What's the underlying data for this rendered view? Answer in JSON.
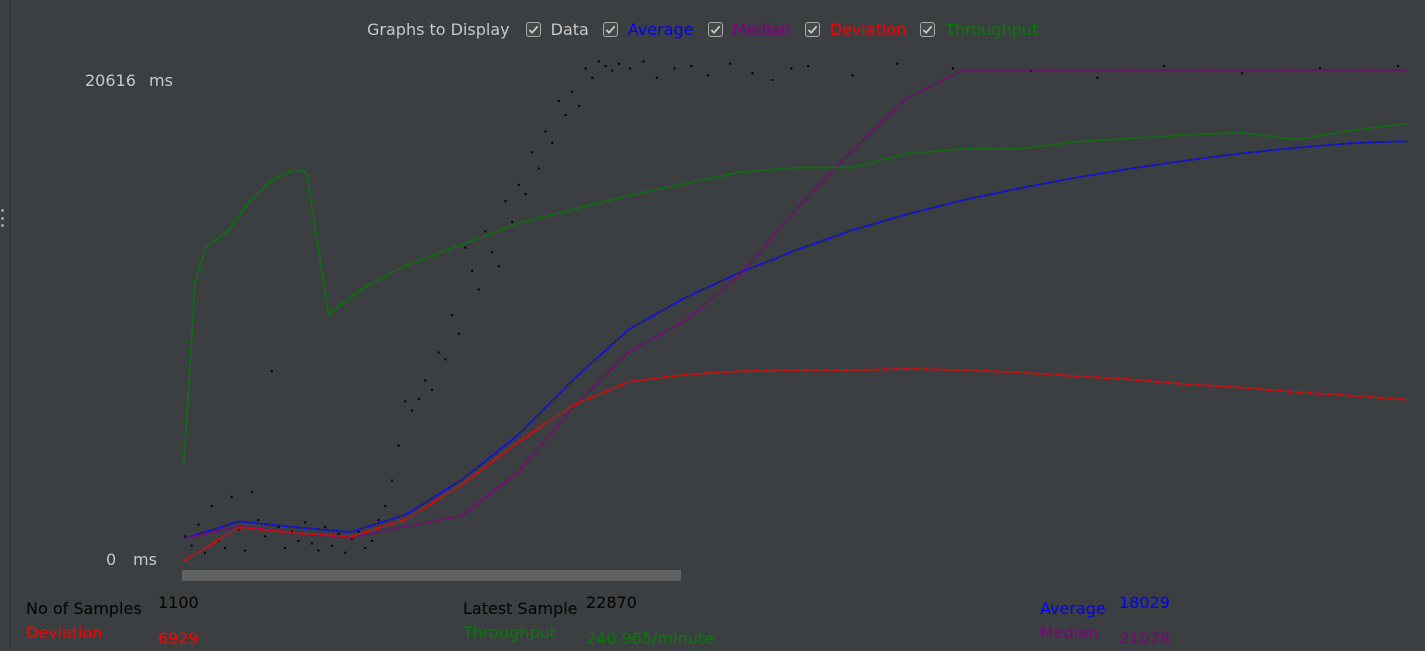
{
  "toolbar": {
    "label": "Graphs to Display",
    "checkboxes": [
      {
        "label": "Data",
        "checked": true,
        "color": "#000000"
      },
      {
        "label": "Average",
        "checked": true,
        "color": "#0000ff"
      },
      {
        "label": "Median",
        "checked": true,
        "color": "#800080"
      },
      {
        "label": "Deviation",
        "checked": true,
        "color": "#ff0000"
      },
      {
        "label": "Throughput",
        "checked": true,
        "color": "#008000"
      }
    ]
  },
  "colors": {
    "background": "#3c3f41",
    "text": "#c8c8c8",
    "data": "#000000",
    "average": "#0000ff",
    "median": "#800080",
    "deviation": "#ff0000",
    "throughput": "#008000"
  },
  "stats": {
    "no_of_samples_label": "No of Samples",
    "no_of_samples_value": "1100",
    "deviation_label": "Deviation",
    "deviation_value": "6929",
    "latest_sample_label": "Latest Sample",
    "latest_sample_value": "22870",
    "throughput_label": "Throughput",
    "throughput_value": "240.965/minute",
    "average_label": "Average",
    "average_value": "18029",
    "median_label": "Median",
    "median_value": "21078"
  },
  "chart_data": {
    "type": "line",
    "ytick_max": "20616",
    "ytick_min": "0",
    "yunit": "ms",
    "ylim": [
      0,
      20616
    ],
    "xlim": [
      0,
      1100
    ],
    "x_label": "",
    "series": [
      {
        "name": "Average",
        "key": "average",
        "x": [
          0,
          50,
          100,
          150,
          200,
          250,
          300,
          350,
          400,
          450,
          500,
          550,
          600,
          650,
          700,
          750,
          800,
          850,
          900,
          950,
          1000,
          1050,
          1100
        ],
        "values": [
          960,
          1700,
          1450,
          1240,
          2000,
          3500,
          5400,
          7800,
          9950,
          11300,
          12400,
          13350,
          14200,
          14900,
          15500,
          16000,
          16450,
          16850,
          17200,
          17500,
          17750,
          17950,
          18029
        ]
      },
      {
        "name": "Median",
        "key": "median",
        "x": [
          0,
          50,
          100,
          150,
          200,
          250,
          300,
          350,
          400,
          450,
          500,
          550,
          600,
          650,
          700,
          750,
          800,
          850,
          900,
          950,
          1000,
          1050,
          1100
        ],
        "values": [
          960,
          1500,
          1200,
          1000,
          1500,
          1950,
          3800,
          6600,
          9000,
          10300,
          12300,
          15100,
          17600,
          19900,
          21078,
          21078,
          21078,
          21078,
          21078,
          21078,
          21078,
          21078,
          21078
        ]
      },
      {
        "name": "Deviation",
        "key": "deviation",
        "x": [
          0,
          50,
          100,
          150,
          200,
          250,
          300,
          350,
          400,
          450,
          500,
          550,
          600,
          650,
          700,
          750,
          800,
          850,
          900,
          950,
          1000,
          1050,
          1100
        ],
        "values": [
          0,
          1450,
          1200,
          1050,
          1800,
          3300,
          5100,
          6700,
          7700,
          8000,
          8150,
          8200,
          8200,
          8250,
          8200,
          8100,
          7950,
          7800,
          7600,
          7450,
          7250,
          7100,
          6929
        ]
      },
      {
        "name": "Throughput",
        "key": "throughput",
        "x": [
          0,
          10,
          20,
          40,
          60,
          80,
          100,
          110,
          130,
          160,
          200,
          250,
          300,
          350,
          400,
          450,
          500,
          550,
          600,
          650,
          700,
          750,
          800,
          850,
          900,
          950,
          1000,
          1050,
          1100
        ],
        "values": [
          4200,
          12000,
          13500,
          14200,
          15500,
          16400,
          16800,
          16700,
          10600,
          11700,
          12700,
          13600,
          14500,
          15100,
          15700,
          16200,
          16700,
          16900,
          16900,
          17500,
          17700,
          17700,
          18000,
          18150,
          18300,
          18400,
          18100,
          18500,
          18800
        ]
      }
    ],
    "data_points": [
      [
        0,
        1100
      ],
      [
        6,
        700
      ],
      [
        12,
        1600
      ],
      [
        18,
        400
      ],
      [
        24,
        2400
      ],
      [
        30,
        900
      ],
      [
        36,
        600
      ],
      [
        42,
        2800
      ],
      [
        48,
        1400
      ],
      [
        54,
        500
      ],
      [
        60,
        3000
      ],
      [
        66,
        1800
      ],
      [
        72,
        1100
      ],
      [
        78,
        8200
      ],
      [
        84,
        1500
      ],
      [
        90,
        600
      ],
      [
        96,
        1300
      ],
      [
        102,
        900
      ],
      [
        108,
        1700
      ],
      [
        114,
        800
      ],
      [
        120,
        500
      ],
      [
        126,
        1500
      ],
      [
        132,
        700
      ],
      [
        138,
        1200
      ],
      [
        144,
        400
      ],
      [
        150,
        1000
      ],
      [
        156,
        1300
      ],
      [
        162,
        600
      ],
      [
        168,
        900
      ],
      [
        174,
        1800
      ],
      [
        180,
        2400
      ],
      [
        186,
        3500
      ],
      [
        192,
        5000
      ],
      [
        198,
        6900
      ],
      [
        204,
        6500
      ],
      [
        210,
        7000
      ],
      [
        216,
        7800
      ],
      [
        222,
        7400
      ],
      [
        228,
        9000
      ],
      [
        234,
        8700
      ],
      [
        240,
        10600
      ],
      [
        246,
        9800
      ],
      [
        252,
        13500
      ],
      [
        258,
        12500
      ],
      [
        264,
        11700
      ],
      [
        270,
        14200
      ],
      [
        276,
        13300
      ],
      [
        282,
        12700
      ],
      [
        288,
        15500
      ],
      [
        294,
        14600
      ],
      [
        300,
        16200
      ],
      [
        306,
        15800
      ],
      [
        312,
        17600
      ],
      [
        318,
        16900
      ],
      [
        324,
        18500
      ],
      [
        330,
        18000
      ],
      [
        336,
        19800
      ],
      [
        342,
        19200
      ],
      [
        348,
        20200
      ],
      [
        354,
        19600
      ],
      [
        360,
        21200
      ],
      [
        366,
        20800
      ],
      [
        372,
        21500
      ],
      [
        378,
        21300
      ],
      [
        384,
        21100
      ],
      [
        390,
        21400
      ],
      [
        400,
        21200
      ],
      [
        412,
        21500
      ],
      [
        424,
        20800
      ],
      [
        440,
        21200
      ],
      [
        455,
        21300
      ],
      [
        470,
        20900
      ],
      [
        490,
        21400
      ],
      [
        510,
        21000
      ],
      [
        528,
        20700
      ],
      [
        545,
        21200
      ],
      [
        560,
        21300
      ],
      [
        600,
        20900
      ],
      [
        640,
        21400
      ],
      [
        690,
        21200
      ],
      [
        760,
        21100
      ],
      [
        820,
        20800
      ],
      [
        880,
        21300
      ],
      [
        950,
        21000
      ],
      [
        1020,
        21200
      ],
      [
        1090,
        21300
      ]
    ],
    "grid": false,
    "legend": "top-center"
  }
}
